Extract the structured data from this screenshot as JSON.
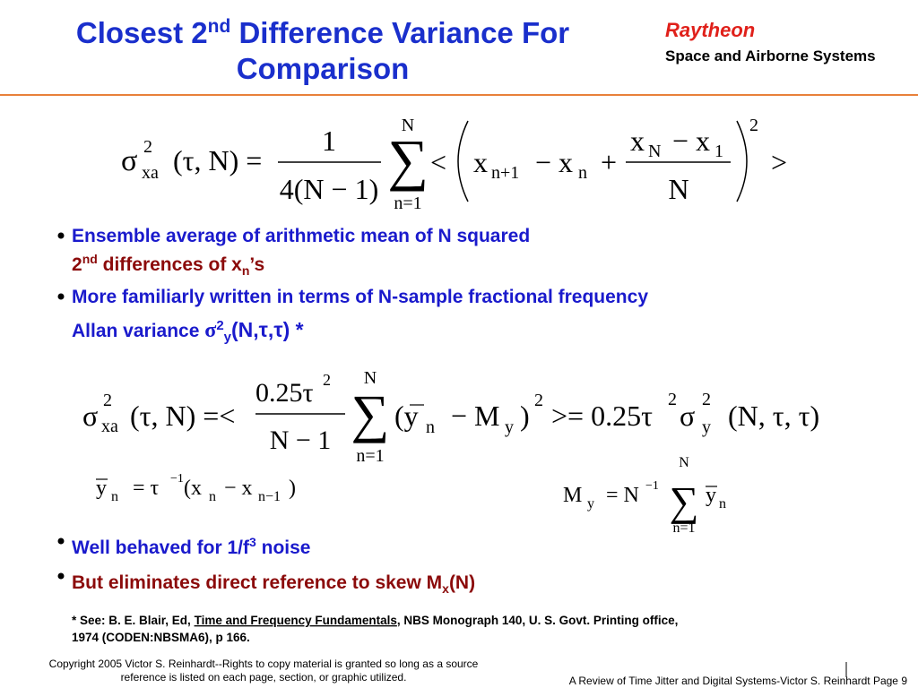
{
  "header": {
    "title": [
      "Closest 2",
      "nd",
      " Difference Variance For",
      "Comparison"
    ],
    "logo": [
      "Raytheon",
      "Space and Airborne Systems"
    ]
  },
  "equations": [
    [
      "σ",
      "2",
      "xa",
      "(τ, N) =",
      "1",
      "4(N − 1)",
      "N",
      "∑",
      "n=1",
      "<",
      "x",
      "n+1",
      "− x",
      "n",
      "+",
      "x",
      "N",
      "− x",
      "1",
      "N",
      "2",
      ">"
    ],
    [
      "σ",
      "2",
      "xa",
      "(τ, N) =<",
      "0.25τ",
      "2",
      "N − 1",
      "N",
      "∑",
      "n=1",
      "(y",
      "n",
      "− M",
      "y",
      ")",
      "2",
      ">= 0.25τ",
      "2",
      "σ",
      "2",
      "y",
      "(N, τ, τ)"
    ],
    [
      "y",
      "n",
      "= τ",
      "−1",
      "(x",
      "n",
      "− x",
      "n−1",
      ")"
    ],
    [
      "M",
      "y",
      "= N",
      "−1",
      "N",
      "∑",
      "n=1",
      "y",
      "n"
    ]
  ],
  "bullets": [
    [
      "Ensemble average of arithmetic mean of N squared",
      "2",
      "nd",
      " differences of x",
      "n",
      "’s"
    ],
    [
      "More familiarly written in terms of N-sample fractional frequency",
      "Allan variance ",
      "σ",
      "2",
      "y",
      "(N,τ,τ) *"
    ],
    [
      "Well behaved for 1/f",
      "3",
      " noise"
    ],
    [
      "But eliminates direct reference to skew M",
      "x",
      "(N)"
    ]
  ],
  "footnote": [
    "* See: B. E. Blair, Ed, ",
    "Time and Frequency Fundamentals",
    ", NBS Monograph 140, U. S. Govt. Printing office,",
    "1974 (CODEN:NBSMA6), p 166."
  ],
  "footer": {
    "copyright": [
      "Copyright 2005 Victor S. Reinhardt--Rights to copy material is granted so long as a source",
      "reference is listed on each page, section, or graphic utilized."
    ],
    "page": "A Review of Time Jitter and Digital Systems-Victor S. Reinhardt  Page 9"
  }
}
